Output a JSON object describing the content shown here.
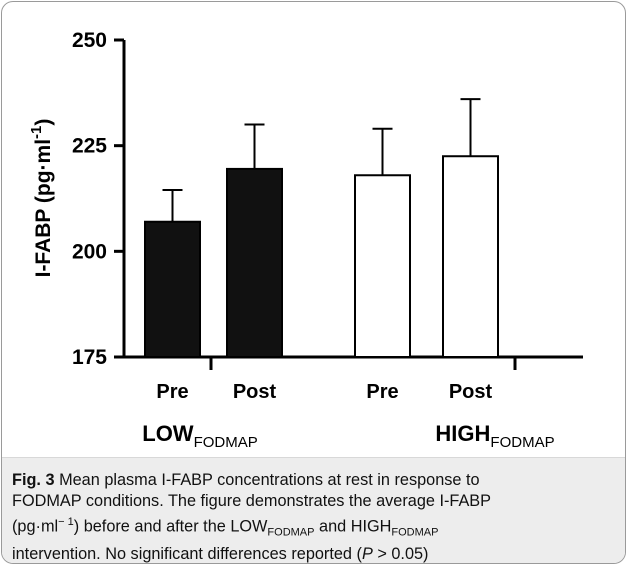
{
  "chart_data": {
    "type": "bar",
    "ylabel": "I-FABP (pg·ml",
    "ylabel_sup": "-1",
    "ylabel_end": ")",
    "ylim": [
      175,
      250
    ],
    "yticks": [
      "175",
      "200",
      "225",
      "250"
    ],
    "yticks_values": [
      175,
      200,
      225,
      250
    ],
    "categories": [
      "Pre",
      "Post",
      "Pre",
      "Post"
    ],
    "groups": [
      {
        "label": "LOW",
        "sub": "FODMAP",
        "category_indices": [
          0,
          1
        ]
      },
      {
        "label": "HIGH",
        "sub": "FODMAP",
        "category_indices": [
          2,
          3
        ]
      }
    ],
    "values": [
      207,
      219.5,
      218,
      222.5
    ],
    "error_upper": [
      214.5,
      230,
      229,
      236
    ],
    "fills": [
      "#111111",
      "#111111",
      "#ffffff",
      "#ffffff"
    ],
    "grid": false
  },
  "caption": {
    "fig_label": "Fig. 3",
    "line1": "Mean plasma I-FABP concentrations at rest in response to",
    "line2": "FODMAP conditions. The figure demonstrates the average I-FABP",
    "line3_a": "(pg·ml",
    "line3_sup": "− 1",
    "line3_b": ") before and after the LOW",
    "line3_sub1": "FODMAP",
    "line3_c": " and HIGH",
    "line3_sub2": "FODMAP",
    "line4_a": "intervention. No significant differences reported (",
    "line4_p": "P",
    "line4_b": " > 0.05)"
  }
}
